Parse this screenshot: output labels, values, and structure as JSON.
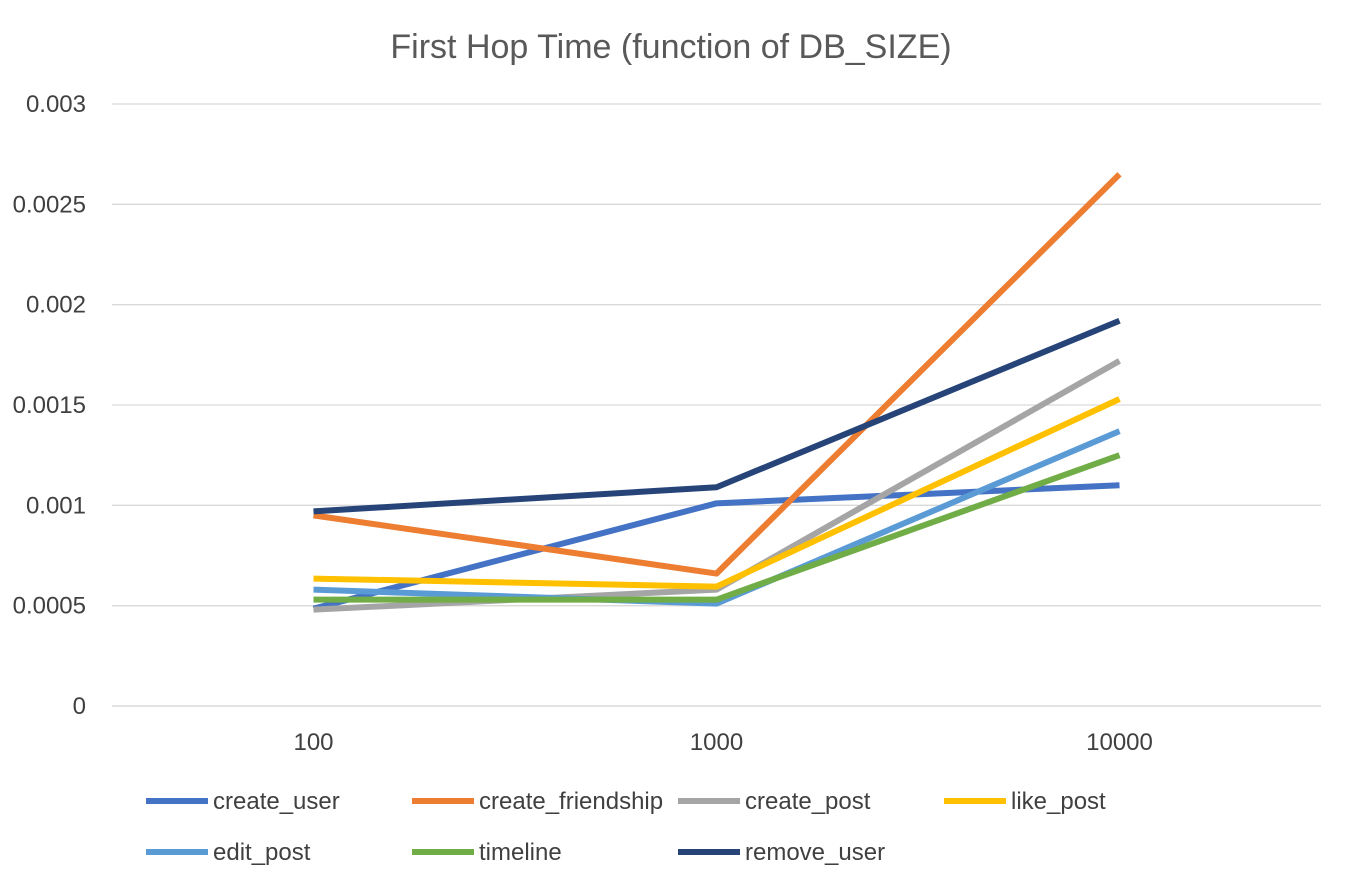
{
  "chart_data": {
    "type": "line",
    "title": "First Hop Time (function of DB_SIZE)",
    "xlabel": "",
    "ylabel": "",
    "categories": [
      "100",
      "1000",
      "10000"
    ],
    "ylim": [
      0,
      0.003
    ],
    "yticks": [
      "0",
      "0.0005",
      "0.001",
      "0.0015",
      "0.002",
      "0.0025",
      "0.003"
    ],
    "ytick_values": [
      0,
      0.0005,
      0.001,
      0.0015,
      0.002,
      0.0025,
      0.003
    ],
    "grid": true,
    "legend_position": "bottom",
    "series": [
      {
        "name": "create_user",
        "color": "#4472C4",
        "values": [
          0.000485,
          0.00101,
          0.0011
        ]
      },
      {
        "name": "create_friendship",
        "color": "#ED7D31",
        "values": [
          0.00095,
          0.00066,
          0.00265
        ]
      },
      {
        "name": "create_post",
        "color": "#A5A5A5",
        "values": [
          0.00048,
          0.00058,
          0.00172
        ]
      },
      {
        "name": "like_post",
        "color": "#FFC000",
        "values": [
          0.000635,
          0.000595,
          0.00153
        ]
      },
      {
        "name": "edit_post",
        "color": "#5B9BD5",
        "values": [
          0.00058,
          0.00051,
          0.00137
        ]
      },
      {
        "name": "timeline",
        "color": "#70AD47",
        "values": [
          0.00053,
          0.00053,
          0.00125
        ]
      },
      {
        "name": "remove_user",
        "color": "#264478",
        "values": [
          0.00097,
          0.00109,
          0.00192
        ]
      }
    ]
  }
}
